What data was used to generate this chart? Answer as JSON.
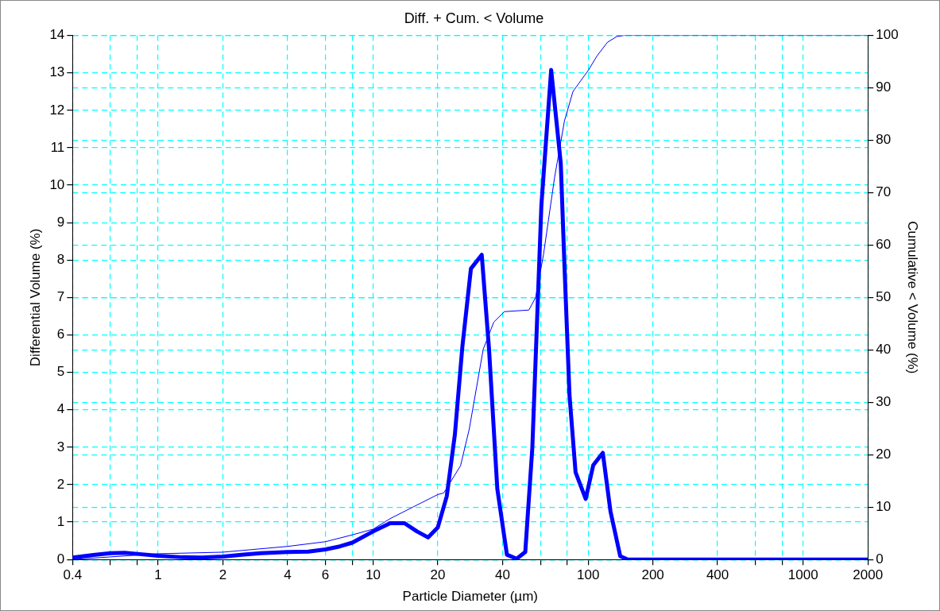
{
  "chart_data": {
    "type": "line",
    "title": "Diff. + Cum. < Volume",
    "xlabel": "Particle Diameter (µm)",
    "ylabel": "Differential Volume (%)",
    "y2label": "Cumulative < Volume (%)",
    "log": "x",
    "grid": true,
    "marker": "none",
    "line_style": "solid",
    "xlim": [
      0.4,
      2000
    ],
    "xticks": [
      0.4,
      {
        "value": 0.6,
        "label": null
      },
      {
        "value": 0.8,
        "label": null
      },
      1,
      2,
      4,
      6,
      {
        "value": 8,
        "label": null
      },
      10,
      20,
      40,
      {
        "value": 60,
        "label": null
      },
      {
        "value": 80,
        "label": null
      },
      100,
      200,
      400,
      {
        "value": 600,
        "label": null
      },
      {
        "value": 800,
        "label": null
      },
      1000,
      2000
    ],
    "ylim": [
      0,
      14
    ],
    "yticks": [
      0,
      1,
      2,
      3,
      4,
      5,
      6,
      7,
      8,
      9,
      10,
      11,
      12,
      13,
      14
    ],
    "y2lim": [
      0,
      100
    ],
    "y2ticks": [
      0,
      10,
      20,
      30,
      40,
      50,
      60,
      70,
      80,
      90,
      100
    ],
    "series": [
      {
        "color": "#0000ff",
        "x": [
          0.4,
          0.5,
          0.6,
          0.7,
          0.8,
          1,
          1.3,
          1.6,
          2,
          2.5,
          3,
          4,
          5,
          6,
          7,
          8,
          10,
          12,
          14,
          16,
          18,
          20,
          22,
          24,
          26,
          28.5,
          32,
          34.6,
          37.8,
          41.9,
          46.5,
          51,
          55,
          60.6,
          67.3,
          74.6,
          77.7,
          81.9,
          87.4,
          97.4,
          105.6,
          117,
          127,
          141,
          153,
          200,
          400,
          1000,
          2000
        ],
        "values": [
          0.05,
          0.12,
          0.17,
          0.18,
          0.15,
          0.1,
          0.06,
          0.05,
          0.08,
          0.13,
          0.17,
          0.2,
          0.21,
          0.27,
          0.35,
          0.45,
          0.75,
          0.97,
          0.97,
          0.75,
          0.59,
          0.86,
          1.69,
          3.34,
          5.68,
          7.77,
          8.14,
          5.62,
          1.89,
          0.13,
          0.02,
          0.2,
          2.98,
          9.46,
          13.08,
          10.58,
          7.77,
          4.39,
          2.33,
          1.62,
          2.52,
          2.85,
          1.29,
          0.09,
          0,
          0,
          0,
          0,
          0
        ]
      },
      {
        "color": "#0000ff",
        "axis": "y2",
        "x": [
          0.4,
          0.6,
          1,
          2,
          4,
          6,
          8,
          10,
          12,
          15.3,
          20,
          21.3,
          25.5,
          28,
          32.5,
          36.4,
          40.8,
          53,
          57,
          62,
          69.8,
          77.6,
          85,
          100.4,
          110,
          123,
          136,
          147,
          2000
        ],
        "values": [
          0,
          0.5,
          1.1,
          1.4,
          2.5,
          3.4,
          4.7,
          5.8,
          7.8,
          10,
          12.4,
          12.7,
          17.9,
          24.9,
          40.1,
          45.3,
          47.3,
          47.6,
          50,
          58.2,
          72.9,
          83.7,
          89.3,
          93.4,
          96.1,
          98.7,
          99.8,
          100,
          100
        ]
      }
    ]
  }
}
